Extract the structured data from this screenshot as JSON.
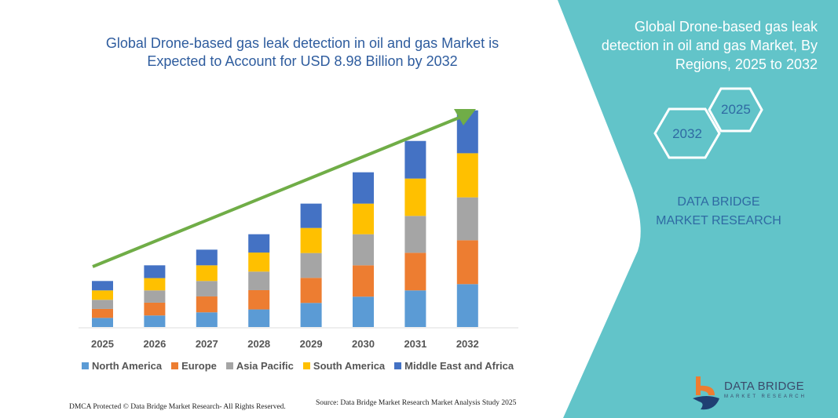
{
  "header": {
    "title": "Global Drone-based gas leak detection in oil and gas Market is Expected to Account for USD 8.98 Billion by 2032"
  },
  "side_panel": {
    "title": "Global Drone-based gas leak detection in oil and gas Market, By Regions, 2025 to 2032",
    "hex_start": "2025",
    "hex_end": "2032",
    "brand": "DATA BRIDGE MARKET RESEARCH",
    "bg_color": "#62c4c9"
  },
  "footer": {
    "copyright": "DMCA Protected © Data Bridge Market Research- All Rights Reserved.",
    "source": "Source: Data Bridge Market Research  Market Analysis Study 2025"
  },
  "logo": {
    "name": "DATA BRIDGE",
    "sub": "MARKET RESEARCH"
  },
  "chart_data": {
    "type": "bar",
    "stacked": true,
    "categories": [
      "2025",
      "2026",
      "2027",
      "2028",
      "2029",
      "2030",
      "2031",
      "2032"
    ],
    "series": [
      {
        "name": "North America",
        "color": "#5b9bd5",
        "values": [
          0.38,
          0.48,
          0.61,
          0.73,
          1.0,
          1.26,
          1.52,
          1.78
        ]
      },
      {
        "name": "Europe",
        "color": "#ed7d31",
        "values": [
          0.37,
          0.53,
          0.66,
          0.8,
          1.04,
          1.3,
          1.56,
          1.82
        ]
      },
      {
        "name": "Asia Pacific",
        "color": "#a5a5a5",
        "values": [
          0.38,
          0.51,
          0.64,
          0.77,
          1.03,
          1.29,
          1.53,
          1.78
        ]
      },
      {
        "name": "South America",
        "color": "#ffc000",
        "values": [
          0.39,
          0.51,
          0.65,
          0.79,
          1.04,
          1.27,
          1.55,
          1.83
        ]
      },
      {
        "name": "Middle East and Africa",
        "color": "#4472c4",
        "values": [
          0.39,
          0.53,
          0.65,
          0.76,
          1.01,
          1.3,
          1.56,
          1.78
        ]
      }
    ],
    "ylim": [
      0,
      8.98
    ],
    "grid": false,
    "legend": "bottom",
    "trend_arrow_color": "#70ad47"
  }
}
